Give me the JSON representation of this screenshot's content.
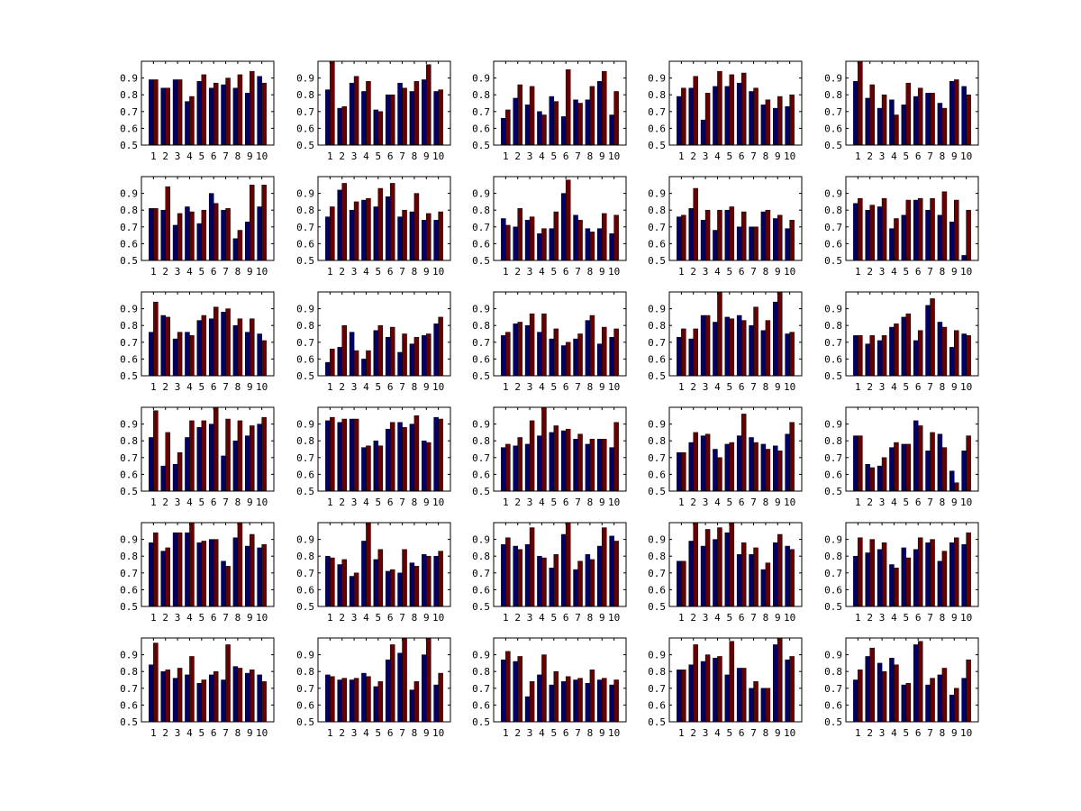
{
  "chart_data": {
    "type": "bar",
    "layout": "grid of 6 rows x 5 columns of grouped bar charts",
    "series_colors": [
      "#000066",
      "#660000"
    ],
    "x_categories": [
      1,
      2,
      3,
      4,
      5,
      6,
      7,
      8,
      9,
      10
    ],
    "y_ticks": [
      0.5,
      0.6,
      0.7,
      0.8,
      0.9
    ],
    "ylim": [
      0.5,
      1.0
    ],
    "grid": false,
    "panels": [
      {
        "series": [
          [
            0.89,
            0.84,
            0.89,
            0.76,
            0.88,
            0.84,
            0.86,
            0.84,
            0.81,
            0.91
          ],
          [
            0.89,
            0.84,
            0.89,
            0.79,
            0.92,
            0.87,
            0.9,
            0.92,
            0.94,
            0.87
          ]
        ]
      },
      {
        "series": [
          [
            0.83,
            0.72,
            0.87,
            0.82,
            0.71,
            0.8,
            0.87,
            0.82,
            0.89,
            0.82
          ],
          [
            1.0,
            0.73,
            0.91,
            0.88,
            0.7,
            0.8,
            0.84,
            0.88,
            0.98,
            0.83
          ]
        ]
      },
      {
        "series": [
          [
            0.66,
            0.78,
            0.74,
            0.7,
            0.79,
            0.67,
            0.77,
            0.77,
            0.88,
            0.68
          ],
          [
            0.71,
            0.86,
            0.85,
            0.68,
            0.76,
            0.95,
            0.75,
            0.85,
            0.94,
            0.82
          ]
        ]
      },
      {
        "series": [
          [
            0.79,
            0.84,
            0.65,
            0.85,
            0.85,
            0.87,
            0.82,
            0.74,
            0.72,
            0.73
          ],
          [
            0.84,
            0.91,
            0.81,
            0.94,
            0.92,
            0.93,
            0.84,
            0.77,
            0.79,
            0.8
          ]
        ]
      },
      {
        "series": [
          [
            0.88,
            0.78,
            0.72,
            0.77,
            0.74,
            0.79,
            0.81,
            0.75,
            0.88,
            0.85
          ],
          [
            1.0,
            0.86,
            0.8,
            0.68,
            0.87,
            0.84,
            0.81,
            0.72,
            0.89,
            0.8
          ]
        ]
      },
      {
        "series": [
          [
            0.81,
            0.8,
            0.71,
            0.82,
            0.72,
            0.9,
            0.8,
            0.63,
            0.73,
            0.82
          ],
          [
            0.81,
            0.94,
            0.78,
            0.79,
            0.8,
            0.84,
            0.81,
            0.68,
            0.95,
            0.95
          ]
        ]
      },
      {
        "series": [
          [
            0.76,
            0.92,
            0.8,
            0.86,
            0.82,
            0.88,
            0.76,
            0.79,
            0.74,
            0.74
          ],
          [
            0.82,
            0.96,
            0.85,
            0.87,
            0.93,
            0.96,
            0.8,
            0.9,
            0.78,
            0.79
          ]
        ]
      },
      {
        "series": [
          [
            0.75,
            0.7,
            0.74,
            0.66,
            0.69,
            0.9,
            0.77,
            0.69,
            0.69,
            0.66
          ],
          [
            0.71,
            0.81,
            0.76,
            0.69,
            0.79,
            0.98,
            0.74,
            0.67,
            0.78,
            0.77
          ]
        ]
      },
      {
        "series": [
          [
            0.76,
            0.81,
            0.74,
            0.68,
            0.8,
            0.7,
            0.7,
            0.79,
            0.75,
            0.69
          ],
          [
            0.77,
            0.93,
            0.8,
            0.8,
            0.82,
            0.79,
            0.7,
            0.8,
            0.77,
            0.74
          ]
        ]
      },
      {
        "series": [
          [
            0.84,
            0.8,
            0.82,
            0.69,
            0.77,
            0.86,
            0.8,
            0.77,
            0.73,
            0.53
          ],
          [
            0.87,
            0.83,
            0.87,
            0.75,
            0.86,
            0.87,
            0.87,
            0.91,
            0.86,
            0.8
          ]
        ]
      },
      {
        "series": [
          [
            0.76,
            0.86,
            0.72,
            0.76,
            0.83,
            0.84,
            0.88,
            0.8,
            0.76,
            0.75
          ],
          [
            0.94,
            0.85,
            0.76,
            0.74,
            0.86,
            0.91,
            0.9,
            0.84,
            0.84,
            0.71
          ]
        ]
      },
      {
        "series": [
          [
            0.58,
            0.67,
            0.76,
            0.6,
            0.77,
            0.73,
            0.64,
            0.69,
            0.74,
            0.81
          ],
          [
            0.66,
            0.8,
            0.65,
            0.65,
            0.8,
            0.79,
            0.75,
            0.73,
            0.75,
            0.85
          ]
        ]
      },
      {
        "series": [
          [
            0.74,
            0.81,
            0.8,
            0.76,
            0.72,
            0.68,
            0.72,
            0.83,
            0.69,
            0.73
          ],
          [
            0.76,
            0.82,
            0.87,
            0.87,
            0.78,
            0.7,
            0.75,
            0.86,
            0.79,
            0.78
          ]
        ]
      },
      {
        "series": [
          [
            0.73,
            0.72,
            0.86,
            0.82,
            0.85,
            0.86,
            0.8,
            0.77,
            0.94,
            0.75
          ],
          [
            0.78,
            0.78,
            0.86,
            1.0,
            0.84,
            0.83,
            0.91,
            0.83,
            1.0,
            0.76
          ]
        ]
      },
      {
        "series": [
          [
            0.74,
            0.69,
            0.71,
            0.79,
            0.85,
            0.71,
            0.92,
            0.82,
            0.67,
            0.75
          ],
          [
            0.74,
            0.74,
            0.74,
            0.81,
            0.87,
            0.77,
            0.96,
            0.79,
            0.77,
            0.74
          ]
        ]
      },
      {
        "series": [
          [
            0.82,
            0.65,
            0.66,
            0.82,
            0.88,
            0.9,
            0.71,
            0.8,
            0.83,
            0.9
          ],
          [
            0.98,
            0.85,
            0.73,
            0.92,
            0.92,
            1.0,
            0.93,
            0.92,
            0.89,
            0.94
          ]
        ]
      },
      {
        "series": [
          [
            0.92,
            0.91,
            0.93,
            0.76,
            0.8,
            0.87,
            0.91,
            0.9,
            0.8,
            0.94
          ],
          [
            0.94,
            0.93,
            0.93,
            0.77,
            0.77,
            0.91,
            0.88,
            0.95,
            0.79,
            0.93
          ]
        ]
      },
      {
        "series": [
          [
            0.76,
            0.77,
            0.78,
            0.83,
            0.85,
            0.86,
            0.81,
            0.78,
            0.81,
            0.76
          ],
          [
            0.78,
            0.82,
            0.92,
            1.0,
            0.89,
            0.87,
            0.84,
            0.81,
            0.81,
            0.91
          ]
        ]
      },
      {
        "series": [
          [
            0.73,
            0.79,
            0.83,
            0.75,
            0.78,
            0.83,
            0.82,
            0.78,
            0.77,
            0.84
          ],
          [
            0.73,
            0.85,
            0.84,
            0.7,
            0.79,
            0.96,
            0.79,
            0.75,
            0.74,
            0.91
          ]
        ]
      },
      {
        "series": [
          [
            0.83,
            0.66,
            0.65,
            0.76,
            0.78,
            0.92,
            0.74,
            0.84,
            0.62,
            0.74
          ],
          [
            0.83,
            0.64,
            0.7,
            0.79,
            0.78,
            0.89,
            0.85,
            0.76,
            0.55,
            0.83
          ]
        ]
      },
      {
        "series": [
          [
            0.88,
            0.83,
            0.94,
            0.94,
            0.88,
            0.9,
            0.77,
            0.91,
            0.86,
            0.85
          ],
          [
            0.94,
            0.85,
            0.94,
            1.0,
            0.89,
            0.9,
            0.74,
            1.0,
            0.93,
            0.87
          ]
        ]
      },
      {
        "series": [
          [
            0.8,
            0.75,
            0.68,
            0.89,
            0.78,
            0.71,
            0.7,
            0.76,
            0.81,
            0.8
          ],
          [
            0.79,
            0.78,
            0.7,
            1.0,
            0.84,
            0.72,
            0.84,
            0.74,
            0.8,
            0.83
          ]
        ]
      },
      {
        "series": [
          [
            0.87,
            0.86,
            0.87,
            0.8,
            0.73,
            0.93,
            0.72,
            0.81,
            0.86,
            0.92
          ],
          [
            0.91,
            0.84,
            0.97,
            0.79,
            0.81,
            1.0,
            0.77,
            0.78,
            0.97,
            0.89
          ]
        ]
      },
      {
        "series": [
          [
            0.77,
            0.89,
            0.86,
            0.9,
            0.94,
            0.81,
            0.81,
            0.72,
            0.88,
            0.86
          ],
          [
            0.77,
            1.0,
            0.96,
            0.97,
            1.0,
            0.88,
            0.85,
            0.76,
            0.93,
            0.84
          ]
        ]
      },
      {
        "series": [
          [
            0.8,
            0.82,
            0.84,
            0.75,
            0.85,
            0.84,
            0.88,
            0.77,
            0.88,
            0.87
          ],
          [
            0.91,
            0.9,
            0.88,
            0.73,
            0.79,
            0.91,
            0.9,
            0.83,
            0.91,
            0.94
          ]
        ]
      },
      {
        "series": [
          [
            0.84,
            0.8,
            0.76,
            0.78,
            0.73,
            0.78,
            0.75,
            0.83,
            0.79,
            0.78
          ],
          [
            0.97,
            0.81,
            0.82,
            0.89,
            0.75,
            0.8,
            0.96,
            0.82,
            0.81,
            0.74
          ]
        ]
      },
      {
        "series": [
          [
            0.78,
            0.75,
            0.75,
            0.79,
            0.71,
            0.87,
            0.91,
            0.69,
            0.9,
            0.72
          ],
          [
            0.77,
            0.76,
            0.76,
            0.77,
            0.74,
            0.96,
            1.0,
            0.74,
            1.0,
            0.79
          ]
        ]
      },
      {
        "series": [
          [
            0.87,
            0.86,
            0.65,
            0.78,
            0.72,
            0.74,
            0.75,
            0.73,
            0.75,
            0.72
          ],
          [
            0.92,
            0.89,
            0.74,
            0.9,
            0.8,
            0.77,
            0.76,
            0.81,
            0.76,
            0.75
          ]
        ]
      },
      {
        "series": [
          [
            0.81,
            0.84,
            0.86,
            0.88,
            0.78,
            0.82,
            0.7,
            0.7,
            0.96,
            0.87
          ],
          [
            0.81,
            0.96,
            0.9,
            0.89,
            0.98,
            0.82,
            0.74,
            0.7,
            1.0,
            0.89
          ]
        ]
      },
      {
        "series": [
          [
            0.75,
            0.89,
            0.85,
            0.88,
            0.72,
            0.96,
            0.72,
            0.78,
            0.66,
            0.76
          ],
          [
            0.81,
            0.94,
            0.8,
            0.84,
            0.73,
            0.98,
            0.76,
            0.82,
            0.7,
            0.87
          ]
        ]
      }
    ]
  }
}
